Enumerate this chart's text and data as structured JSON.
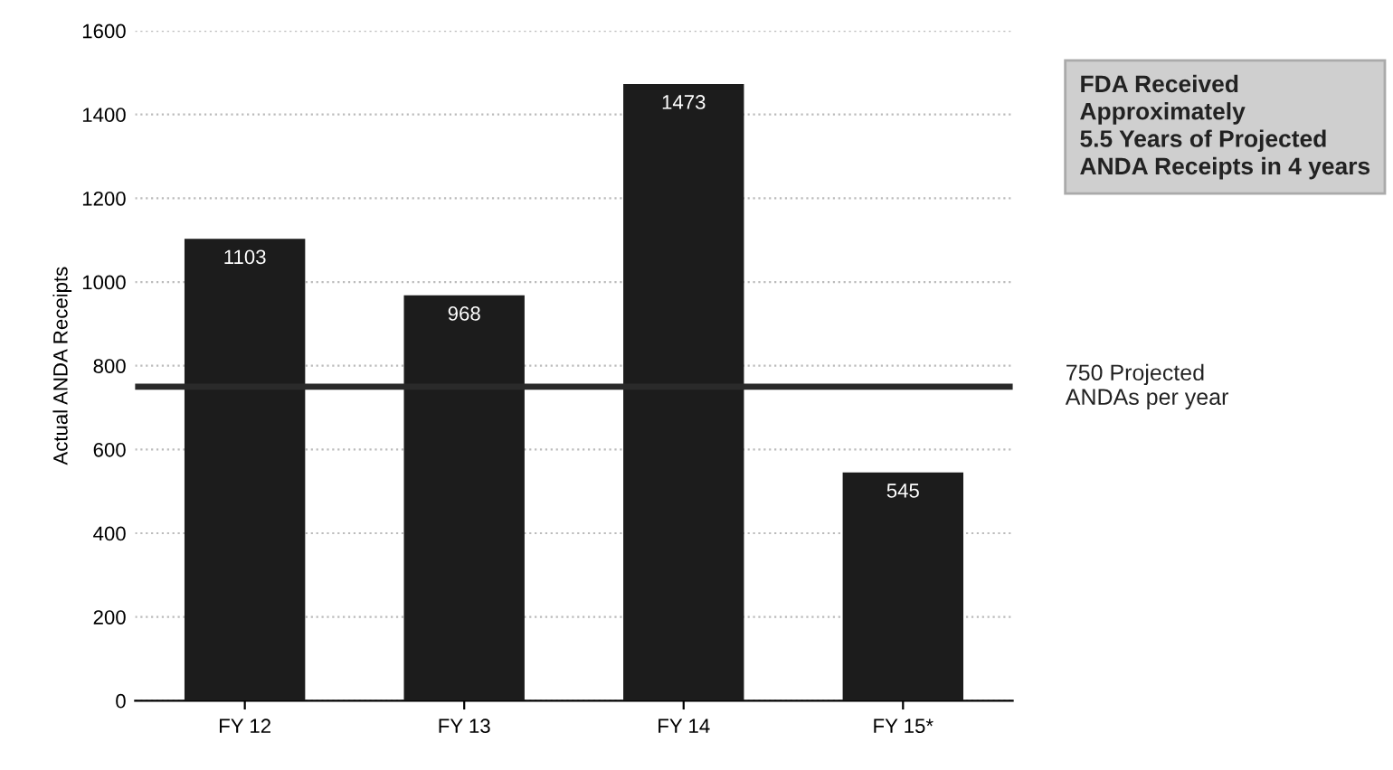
{
  "chart_data": {
    "type": "bar",
    "ylabel": "Actual ANDA Receipts",
    "categories": [
      "FY 12",
      "FY 13",
      "FY 14",
      "FY 15*"
    ],
    "values": [
      1103,
      968,
      1473,
      545
    ],
    "color": "#1c1c1c",
    "ylim": [
      0,
      1600
    ],
    "yticks": [
      0,
      200,
      400,
      600,
      800,
      1000,
      1200,
      1400,
      1600
    ],
    "grid": "y",
    "data_labels": true,
    "ref_lines": [
      {
        "axis": "y",
        "value": 750,
        "label": "750 Projected\nANDAs per year",
        "color": "#2a2a2a"
      }
    ],
    "annotations": [
      "FDA Received\nApproximately\n5.5 Years of Projected\nANDA Receipts in 4 years"
    ]
  }
}
